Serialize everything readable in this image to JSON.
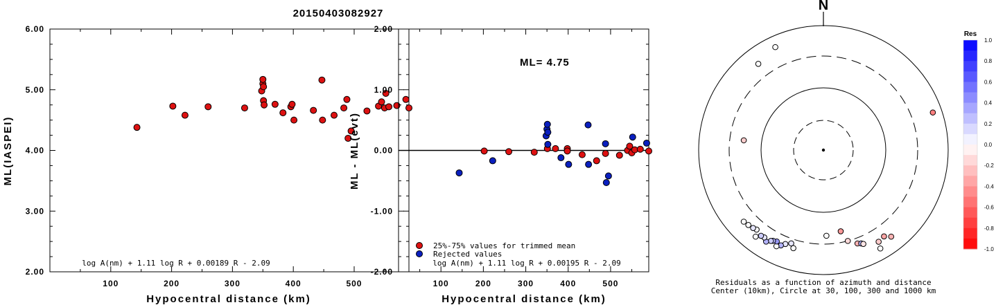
{
  "title": "20150403082927",
  "colors": {
    "accepted": "#dd1111",
    "rejected": "#0a1fbf"
  },
  "left_panel": {
    "ylabel": "ML(IASPEI)",
    "xlabel": "Hypocentral distance (km)",
    "formula": "log A(nm) + 1.11 log R + 0.00189 R - 2.09",
    "y_ticks": [
      "2.00",
      "3.00",
      "4.00",
      "5.00",
      "6.00"
    ],
    "x_ticks": [
      "100",
      "200",
      "300",
      "400",
      "500"
    ]
  },
  "right_panel": {
    "ylabel": "ML - ML(evt)",
    "xlabel": "Hypocentral distance (km)",
    "ml_label": "ML= 4.75",
    "formula": "log A(nm) + 1.11 log R + 0.00195 R - 2.09",
    "legend": [
      "25%-75% values for trimmed mean",
      "Rejected values"
    ],
    "y_ticks": [
      "-2.00",
      "-1.00",
      "0.00",
      "1.00",
      "2.00"
    ],
    "x_ticks": [
      "100",
      "200",
      "300",
      "400",
      "500"
    ]
  },
  "polar": {
    "north": "N",
    "caption1": "Residuals as a function of azimuth and distance",
    "caption2": "Center (10km), Circle at 30, 100, 300 and 1000 km",
    "colorbar_title": "Res",
    "colorbar_ticks": [
      "1.0",
      "0.8",
      "0.6",
      "0.4",
      "0.2",
      "0.0",
      "-0.2",
      "-0.4",
      "-0.6",
      "-0.8",
      "-1.0"
    ]
  },
  "chart_data": [
    {
      "type": "scatter",
      "title": "20150403082927",
      "xlabel": "Hypocentral distance (km)",
      "ylabel": "ML(IASPEI)",
      "xlim": [
        0,
        590
      ],
      "ylim": [
        2.0,
        6.0
      ],
      "points": [
        [
          143,
          4.38
        ],
        [
          202,
          4.73
        ],
        [
          222,
          4.58
        ],
        [
          260,
          4.72
        ],
        [
          320,
          4.7
        ],
        [
          348,
          4.98
        ],
        [
          350,
          5.1
        ],
        [
          350,
          5.17
        ],
        [
          351,
          5.05
        ],
        [
          351,
          4.82
        ],
        [
          352,
          4.75
        ],
        [
          370,
          4.76
        ],
        [
          383,
          4.62
        ],
        [
          396,
          4.72
        ],
        [
          398,
          4.76
        ],
        [
          401,
          4.5
        ],
        [
          433,
          4.66
        ],
        [
          447,
          5.16
        ],
        [
          448,
          4.5
        ],
        [
          467,
          4.58
        ],
        [
          483,
          4.7
        ],
        [
          488,
          4.84
        ],
        [
          490,
          4.2
        ],
        [
          495,
          4.32
        ],
        [
          521,
          4.65
        ],
        [
          540,
          4.73
        ],
        [
          545,
          4.8
        ],
        [
          550,
          4.7
        ],
        [
          552,
          4.94
        ],
        [
          557,
          4.72
        ],
        [
          570,
          4.74
        ],
        [
          585,
          4.84
        ],
        [
          590,
          4.7
        ]
      ]
    },
    {
      "type": "scatter",
      "xlabel": "Hypocentral distance (km)",
      "ylabel": "ML - ML(evt)",
      "xlim": [
        0,
        590
      ],
      "ylim": [
        -2.0,
        2.0
      ],
      "series": [
        {
          "name": "25%-75% values for trimmed mean",
          "points": [
            [
              202,
              -0.01
            ],
            [
              260,
              -0.02
            ],
            [
              320,
              -0.03
            ],
            [
              351,
              0.03
            ],
            [
              370,
              0.03
            ],
            [
              398,
              0.03
            ],
            [
              398,
              -0.01
            ],
            [
              433,
              -0.07
            ],
            [
              467,
              -0.17
            ],
            [
              488,
              -0.05
            ],
            [
              521,
              -0.08
            ],
            [
              540,
              0.0
            ],
            [
              545,
              0.07
            ],
            [
              550,
              -0.04
            ],
            [
              557,
              0.01
            ],
            [
              570,
              0.02
            ],
            [
              590,
              -0.01
            ]
          ]
        },
        {
          "name": "Rejected values",
          "points": [
            [
              143,
              -0.37
            ],
            [
              222,
              -0.17
            ],
            [
              348,
              0.24
            ],
            [
              350,
              0.35
            ],
            [
              351,
              0.43
            ],
            [
              352,
              0.3
            ],
            [
              352,
              0.1
            ],
            [
              383,
              -0.12
            ],
            [
              401,
              -0.23
            ],
            [
              447,
              0.42
            ],
            [
              448,
              -0.23
            ],
            [
              488,
              0.11
            ],
            [
              490,
              -0.53
            ],
            [
              495,
              -0.42
            ],
            [
              552,
              0.22
            ],
            [
              585,
              0.12
            ]
          ]
        }
      ]
    },
    {
      "type": "scatter",
      "coordinate_system": "polar (azimuth deg, distance km, log radial scale)",
      "rings_km": [
        30,
        100,
        300,
        1000
      ],
      "center_km": 10,
      "colorbar_range": [
        -1.0,
        1.0
      ],
      "points": [
        {
          "az": -25,
          "dist": 650,
          "res": 0.0
        },
        {
          "az": -37,
          "dist": 520,
          "res": 0.0
        },
        {
          "az": 71,
          "dist": 700,
          "res": -0.5
        },
        {
          "az": -83,
          "dist": 185,
          "res": -0.2
        },
        {
          "az": 168,
          "dist": 205,
          "res": -0.4
        },
        {
          "az": 178,
          "dist": 225,
          "res": 0.0
        },
        {
          "az": 165,
          "dist": 300,
          "res": -0.15
        },
        {
          "az": 160,
          "dist": 370,
          "res": -0.3
        },
        {
          "az": 145,
          "dist": 470,
          "res": -0.35
        },
        {
          "az": 142,
          "dist": 560,
          "res": -0.3
        },
        {
          "az": 149,
          "dist": 500,
          "res": -0.2
        },
        {
          "az": 150,
          "dist": 650,
          "res": 0.0
        },
        {
          "az": 158,
          "dist": 390,
          "res": 0.3
        },
        {
          "az": 157,
          "dist": 410,
          "res": -0.1
        },
        {
          "az": 199,
          "dist": 360,
          "res": 0.1
        },
        {
          "az": 197,
          "dist": 420,
          "res": 0.0
        },
        {
          "az": 202,
          "dist": 400,
          "res": 0.1
        },
        {
          "az": 204,
          "dist": 450,
          "res": 0.3
        },
        {
          "az": 206,
          "dist": 500,
          "res": 0.0
        },
        {
          "az": 207,
          "dist": 420,
          "res": 0.4
        },
        {
          "az": 209,
          "dist": 440,
          "res": 0.3
        },
        {
          "az": 210,
          "dist": 460,
          "res": 0.2
        },
        {
          "az": 212,
          "dist": 520,
          "res": 0.3
        },
        {
          "az": 214,
          "dist": 470,
          "res": 0.1
        },
        {
          "az": 216,
          "dist": 480,
          "res": 0.2
        },
        {
          "az": 218,
          "dist": 560,
          "res": 0.0
        },
        {
          "az": 220,
          "dist": 440,
          "res": 0.0
        },
        {
          "az": 222,
          "dist": 460,
          "res": 0.1
        },
        {
          "az": 225,
          "dist": 480,
          "res": 0.0
        },
        {
          "az": 228,
          "dist": 500,
          "res": 0.0
        }
      ]
    }
  ]
}
